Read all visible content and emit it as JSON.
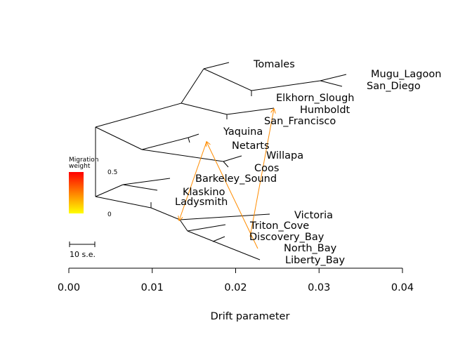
{
  "chart_data": {
    "type": "tree",
    "xlabel": "Drift parameter",
    "xlim": [
      0.0,
      0.04
    ],
    "xticks": [
      "0.00",
      "0.01",
      "0.02",
      "0.03",
      "0.04"
    ],
    "tips": [
      {
        "name": "Tomales",
        "drift": 0.0192
      },
      {
        "name": "Mugu_Lagoon",
        "drift": 0.0334
      },
      {
        "name": "San_Diego",
        "drift": 0.0329
      },
      {
        "name": "Elkhorn_Slough",
        "drift": 0.0246
      },
      {
        "name": "Humboldt",
        "drift": 0.0246
      },
      {
        "name": "San_Francisco",
        "drift": 0.0246
      },
      {
        "name": "Yaquina",
        "drift": 0.0155
      },
      {
        "name": "Netarts",
        "drift": 0.0155
      },
      {
        "name": "Willapa",
        "drift": 0.0205
      },
      {
        "name": "Coos",
        "drift": 0.0193
      },
      {
        "name": "Barkeley_Sound",
        "drift": 0.0121
      },
      {
        "name": "Klaskino",
        "drift": 0.0106
      },
      {
        "name": "Ladysmith",
        "drift": 0.0098
      },
      {
        "name": "Victoria",
        "drift": 0.024
      },
      {
        "name": "Triton_Cove",
        "drift": 0.0187
      },
      {
        "name": "Discovery_Bay",
        "drift": 0.0175
      },
      {
        "name": "North_Bay",
        "drift": 0.0224
      },
      {
        "name": "Liberty_Bay",
        "drift": 0.0229
      }
    ],
    "migration_edges": [
      {
        "from": "Discovery_Bay",
        "to": "Humboldt",
        "weight": 0.4
      },
      {
        "from": "North_Bay",
        "to": "Netarts",
        "weight": 0.4
      },
      {
        "from": "Netarts",
        "to": "Ladysmith",
        "weight": 0.4
      }
    ],
    "legend": {
      "title_line1": "Migration",
      "title_line2": "weight",
      "max_label": "0.5",
      "min_label": "0",
      "color_top": "#ff0000",
      "color_bottom": "#ffff00"
    },
    "scale_bar_label": "10 s.e.",
    "colors": {
      "tree": "#000000",
      "migration": "#ff8c00"
    }
  }
}
